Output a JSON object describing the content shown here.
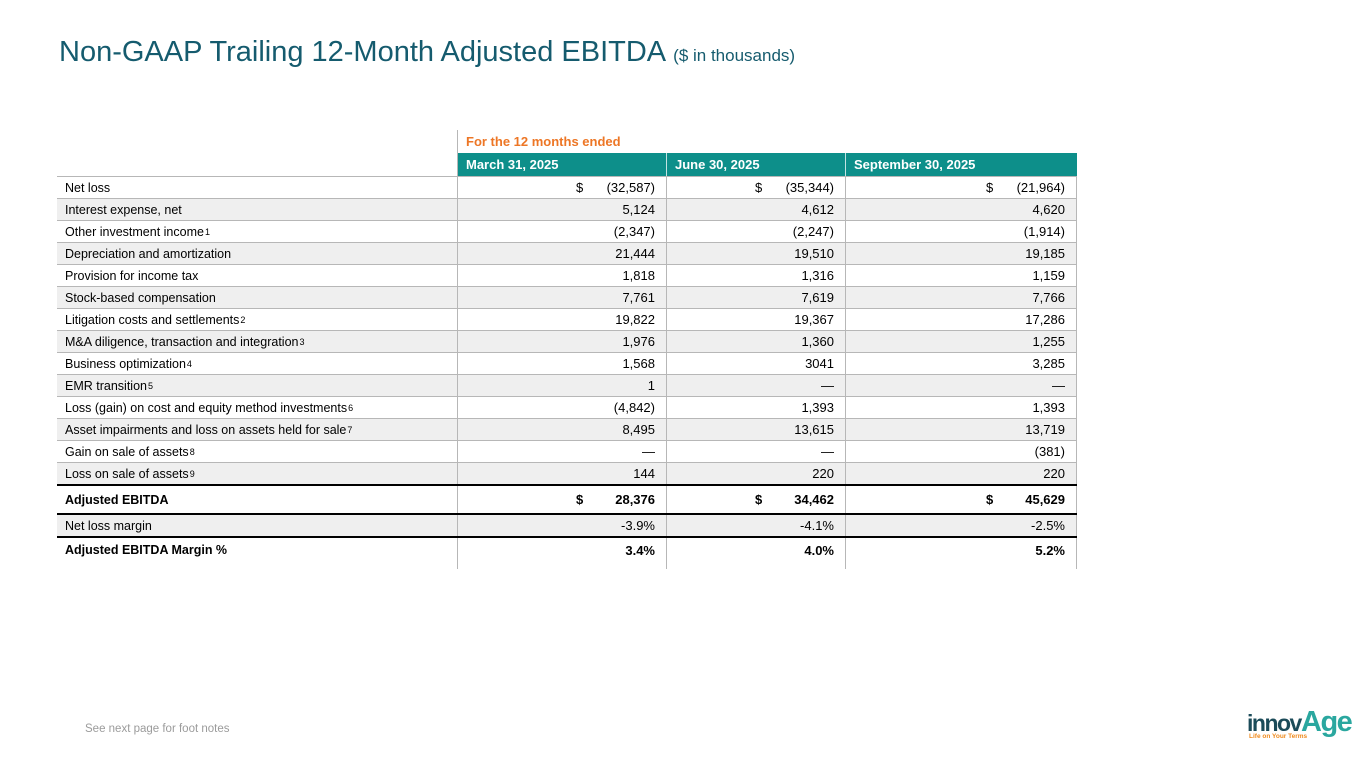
{
  "title": {
    "main": "Non-GAAP Trailing 12-Month Adjusted EBITDA",
    "suffix": "($ in thousands)"
  },
  "table": {
    "group_header": "For the 12 months ended",
    "currency_symbol": "$",
    "columns": [
      "March 31, 2025",
      "June 30, 2025",
      "September 30, 2025"
    ],
    "rows": [
      {
        "label": "Net loss",
        "sup": "",
        "dollar": true,
        "bold": false,
        "thick_top": false,
        "values": [
          "(32,587)",
          "(35,344)",
          "(21,964)"
        ]
      },
      {
        "label": "Interest expense, net",
        "sup": "",
        "dollar": false,
        "bold": false,
        "thick_top": false,
        "values": [
          "5,124",
          "4,612",
          "4,620"
        ]
      },
      {
        "label": "Other investment income",
        "sup": "1",
        "dollar": false,
        "bold": false,
        "thick_top": false,
        "values": [
          "(2,347)",
          "(2,247)",
          "(1,914)"
        ]
      },
      {
        "label": "Depreciation and amortization",
        "sup": "",
        "dollar": false,
        "bold": false,
        "thick_top": false,
        "values": [
          "21,444",
          "19,510",
          "19,185"
        ]
      },
      {
        "label": "Provision for income tax",
        "sup": "",
        "dollar": false,
        "bold": false,
        "thick_top": false,
        "values": [
          "1,818",
          "1,316",
          "1,159"
        ]
      },
      {
        "label": "Stock-based compensation",
        "sup": "",
        "dollar": false,
        "bold": false,
        "thick_top": false,
        "values": [
          "7,761",
          "7,619",
          "7,766"
        ]
      },
      {
        "label": "Litigation costs and settlements",
        "sup": "2",
        "dollar": false,
        "bold": false,
        "thick_top": false,
        "values": [
          "19,822",
          "19,367",
          "17,286"
        ]
      },
      {
        "label": "M&A diligence, transaction and integration",
        "sup": "3",
        "dollar": false,
        "bold": false,
        "thick_top": false,
        "values": [
          "1,976",
          "1,360",
          "1,255"
        ]
      },
      {
        "label": "Business optimization",
        "sup": "4",
        "dollar": false,
        "bold": false,
        "thick_top": false,
        "values": [
          "1,568",
          "3041",
          "3,285"
        ]
      },
      {
        "label": "EMR transition",
        "sup": "5",
        "dollar": false,
        "bold": false,
        "thick_top": false,
        "values": [
          "1",
          "—",
          "—"
        ]
      },
      {
        "label": "Loss (gain) on cost and equity method investments",
        "sup": "6",
        "dollar": false,
        "bold": false,
        "thick_top": false,
        "values": [
          "(4,842)",
          "1,393",
          "1,393"
        ]
      },
      {
        "label": "Asset impairments and loss on assets held for sale",
        "sup": "7",
        "dollar": false,
        "bold": false,
        "thick_top": false,
        "values": [
          "8,495",
          "13,615",
          "13,719"
        ]
      },
      {
        "label": "Gain on sale of assets",
        "sup": "8",
        "dollar": false,
        "bold": false,
        "thick_top": false,
        "values": [
          "—",
          "—",
          "(381)"
        ]
      },
      {
        "label": "Loss on sale of assets",
        "sup": "9",
        "dollar": false,
        "bold": false,
        "thick_top": false,
        "values": [
          "144",
          "220",
          "220"
        ]
      },
      {
        "label": "Adjusted EBITDA",
        "sup": "",
        "dollar": true,
        "bold": true,
        "thick_top": true,
        "values": [
          "28,376",
          "34,462",
          "45,629"
        ]
      },
      {
        "label": "Net loss margin",
        "sup": "",
        "dollar": false,
        "bold": false,
        "thick_top": true,
        "values": [
          "-3.9%",
          "-4.1%",
          "-2.5%"
        ]
      },
      {
        "label": "Adjusted EBITDA Margin %",
        "sup": "",
        "dollar": false,
        "bold": true,
        "thick_top": true,
        "values": [
          "3.4%",
          "4.0%",
          "5.2%"
        ]
      }
    ]
  },
  "footer": {
    "note": "See next page for foot notes"
  },
  "logo": {
    "part1": "innov",
    "part2": "Age",
    "tagline": "Life on Your Terms"
  },
  "colors": {
    "title_teal": "#155b6e",
    "header_teal": "#0d8f8a",
    "group_header_orange": "#ed7625",
    "row_shade_gray": "#efefef",
    "grid_gray": "#b7b7b7",
    "thick_rule_black": "#000000",
    "footer_gray": "#9b9b9b",
    "logo_dark_teal": "#1b4b59",
    "logo_turquoise": "#2aa79f",
    "logo_orange": "#ef8a1d"
  }
}
